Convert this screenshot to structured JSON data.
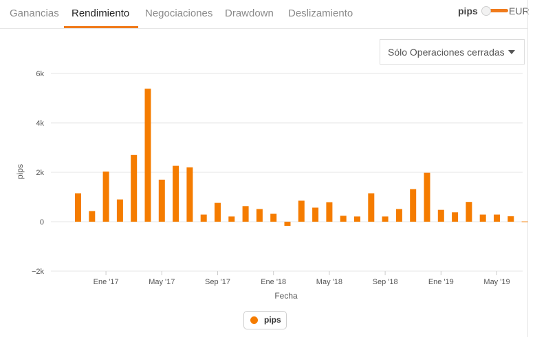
{
  "tabs": [
    {
      "label": "Ganancias",
      "active": false
    },
    {
      "label": "Rendimiento",
      "active": true
    },
    {
      "label": "Negociaciones",
      "active": false
    },
    {
      "label": "Drawdown",
      "active": false
    },
    {
      "label": "Deslizamiento",
      "active": false
    }
  ],
  "unit_toggle": {
    "left_label": "pips",
    "right_label": "EUR",
    "selected": "pips"
  },
  "filter": {
    "selected": "Sólo Operaciones cerradas"
  },
  "colors": {
    "accent": "#f07b1c",
    "bar": "#f57c00",
    "grid": "#e6e6e6"
  },
  "chart_data": {
    "type": "bar",
    "xlabel": "Fecha",
    "ylabel": "pips",
    "ylim": [
      -2000,
      6000
    ],
    "yticks": [
      "6k",
      "4k",
      "2k",
      "0",
      "−2k"
    ],
    "ytick_values": [
      6000,
      4000,
      2000,
      0,
      -2000
    ],
    "xtick_labels": [
      "Ene '17",
      "May '17",
      "Sep '17",
      "Ene '18",
      "May '18",
      "Sep '18",
      "Ene '19",
      "May '19"
    ],
    "xtick_months": [
      "2017-01",
      "2017-05",
      "2017-09",
      "2018-01",
      "2018-05",
      "2018-09",
      "2019-01",
      "2019-05"
    ],
    "legend_position": "bottom-center",
    "grid": true,
    "series": [
      {
        "name": "pips",
        "months": [
          "2016-11",
          "2016-12",
          "2017-01",
          "2017-02",
          "2017-03",
          "2017-04",
          "2017-05",
          "2017-06",
          "2017-07",
          "2017-08",
          "2017-09",
          "2017-10",
          "2017-11",
          "2017-12",
          "2018-01",
          "2018-02",
          "2018-03",
          "2018-04",
          "2018-05",
          "2018-06",
          "2018-07",
          "2018-08",
          "2018-09",
          "2018-10",
          "2018-11",
          "2018-12",
          "2019-01",
          "2019-02",
          "2019-03",
          "2019-04",
          "2019-05",
          "2019-06",
          "2019-07"
        ],
        "values": [
          1150,
          430,
          2030,
          900,
          2700,
          5380,
          1700,
          2260,
          2200,
          290,
          760,
          210,
          630,
          510,
          320,
          -170,
          850,
          570,
          790,
          240,
          210,
          1150,
          210,
          510,
          1320,
          1980,
          480,
          380,
          800,
          290,
          290,
          220,
          10
        ]
      }
    ]
  }
}
